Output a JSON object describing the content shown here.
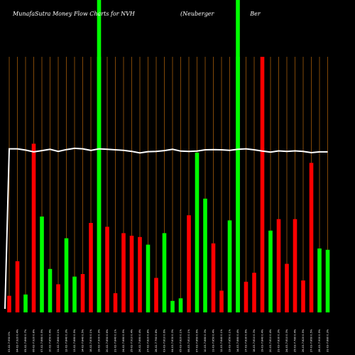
{
  "chart_data": {
    "type": "bar",
    "title_left": "MunafaSutra  Money Flow  Charts for NVH",
    "title_right": "(Neuberger                    Ber",
    "background": "#000000",
    "colors": {
      "up": "#00ff00",
      "down": "#ff0000",
      "grid": "#b8660b",
      "line": "#ffffff"
    },
    "ylim": [
      0,
      100
    ],
    "highlight_columns": [
      11,
      28
    ],
    "categories": [
      "03-02-7.950 0%",
      "04-02-7.920 0.4%",
      "05-02-7.860 0.7%",
      "06-02-7.920 0.8%",
      "07-02-7.880 0.5%",
      "10-02-7.850 0.4%",
      "11-02-7.860 0.1%",
      "12-02-7.840 0.3%",
      "13-02-7.880 0.5%",
      "14-02-7.840 0.5%",
      "18-02-7.830 0.1%",
      "19-02-7.900 0.9%",
      "20-02-7.850 0.6%",
      "21-02-7.840 0.1%",
      "24-02-7.880 0.5%",
      "25-02-7.910 0.4%",
      "26-02-7.880 0.4%",
      "27-02-7.820 0.8%",
      "28-02-7.760 0.8%",
      "03-03-7.810 0.6%",
      "04-03-7.830 0.3%",
      "05-03-7.820 0.1%",
      "06-03-7.810 0.1%",
      "07-03-7.860 0.6%",
      "10-03-7.880 0.3%",
      "11-03-7.850 0.4%",
      "12-03-7.840 0.1%",
      "13-03-7.850 0.1%",
      "14-03-7.880 0.4%",
      "17-03-7.830 0.6%",
      "18-03-7.810 0.3%",
      "19-03-7.840 0.4%",
      "20-03-7.810 0.4%",
      "21-03-7.830 0.3%",
      "24-03-7.810 0.3%",
      "25-03-7.780 0.4%",
      "26-03-7.820 0.5%",
      "27-03-7.860 0.5%",
      "28-03-7.900 0.5%",
      "31-03-7.880 0.3%"
    ],
    "bars": [
      {
        "value": 6.5,
        "dir": "down"
      },
      {
        "value": 20,
        "dir": "down"
      },
      {
        "value": 7,
        "dir": "up"
      },
      {
        "value": 66,
        "dir": "down"
      },
      {
        "value": 37.5,
        "dir": "up"
      },
      {
        "value": 17,
        "dir": "up"
      },
      {
        "value": 11,
        "dir": "down"
      },
      {
        "value": 29,
        "dir": "up"
      },
      {
        "value": 14,
        "dir": "up"
      },
      {
        "value": 15,
        "dir": "down"
      },
      {
        "value": 35,
        "dir": "down"
      },
      {
        "value": 100,
        "dir": "up"
      },
      {
        "value": 33.5,
        "dir": "down"
      },
      {
        "value": 7.5,
        "dir": "down"
      },
      {
        "value": 31,
        "dir": "down"
      },
      {
        "value": 30,
        "dir": "down"
      },
      {
        "value": 29.5,
        "dir": "down"
      },
      {
        "value": 26.5,
        "dir": "up"
      },
      {
        "value": 13.5,
        "dir": "down"
      },
      {
        "value": 31,
        "dir": "up"
      },
      {
        "value": 4.5,
        "dir": "up"
      },
      {
        "value": 5.5,
        "dir": "up"
      },
      {
        "value": 38,
        "dir": "down"
      },
      {
        "value": 62.5,
        "dir": "up"
      },
      {
        "value": 44.5,
        "dir": "up"
      },
      {
        "value": 27,
        "dir": "down"
      },
      {
        "value": 8.5,
        "dir": "down"
      },
      {
        "value": 36,
        "dir": "up"
      },
      {
        "value": 100,
        "dir": "up"
      },
      {
        "value": 12,
        "dir": "down"
      },
      {
        "value": 15.5,
        "dir": "down"
      },
      {
        "value": 100,
        "dir": "down"
      },
      {
        "value": 32,
        "dir": "up"
      },
      {
        "value": 36.5,
        "dir": "down"
      },
      {
        "value": 19,
        "dir": "down"
      },
      {
        "value": 36.5,
        "dir": "down"
      },
      {
        "value": 12.5,
        "dir": "down"
      },
      {
        "value": 58.5,
        "dir": "down"
      },
      {
        "value": 25,
        "dir": "up"
      },
      {
        "value": 24.5,
        "dir": "up"
      }
    ],
    "price_line": [
      64,
      64,
      63.5,
      62.8,
      63.3,
      63.8,
      63,
      63.7,
      64.2,
      64,
      63.4,
      64,
      63.8,
      63.6,
      63.4,
      63,
      62.4,
      62.9,
      63,
      63.3,
      63.8,
      63.1,
      63,
      63.1,
      63.6,
      63.7,
      63.6,
      63.4,
      63.8,
      64,
      63.6,
      63.1,
      62.7,
      63.2,
      63,
      63.2,
      63,
      62.5,
      62.8,
      62.8
    ],
    "price_line_start": 1
  }
}
